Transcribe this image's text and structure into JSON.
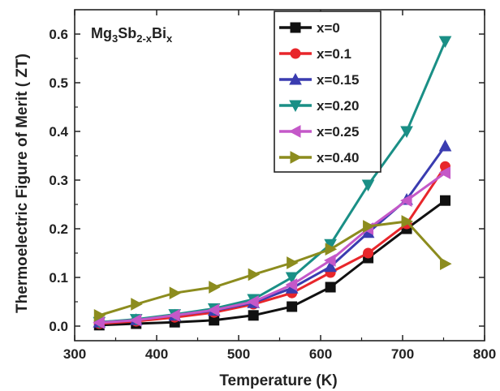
{
  "chart_data": {
    "type": "line",
    "annotation": {
      "main": "Mg",
      "sub1": "3",
      "mid": "Sb",
      "sub2": "2-x",
      "mid2": "Bi",
      "sub3": "x"
    },
    "xlabel": "Temperature (K)",
    "ylabel": "Thermoelectric Figure of Merit ( ZT)",
    "xlim": [
      300,
      800
    ],
    "ylim": [
      -0.03,
      0.65
    ],
    "xticks": [
      300,
      400,
      500,
      600,
      700,
      800
    ],
    "yticks": [
      0.0,
      0.1,
      0.2,
      0.3,
      0.4,
      0.5,
      0.6
    ],
    "ytick_labels": [
      "0.0",
      "0.1",
      "0.2",
      "0.3",
      "0.4",
      "0.5",
      "0.6"
    ],
    "legend_position": "top-center",
    "series": [
      {
        "name": "x=0",
        "color": "#111111",
        "marker": "square",
        "x": [
          330,
          375,
          422,
          470,
          518,
          565,
          612,
          658,
          705,
          752
        ],
        "y": [
          0.002,
          0.005,
          0.008,
          0.012,
          0.022,
          0.04,
          0.08,
          0.14,
          0.2,
          0.258
        ]
      },
      {
        "name": "x=0.1",
        "color": "#e8262b",
        "marker": "circle",
        "x": [
          330,
          375,
          422,
          470,
          518,
          565,
          612,
          658,
          705,
          752
        ],
        "y": [
          0.005,
          0.01,
          0.018,
          0.028,
          0.045,
          0.068,
          0.11,
          0.15,
          0.21,
          0.328
        ]
      },
      {
        "name": "x=0.15",
        "color": "#3a3cb0",
        "marker": "triangle-up",
        "x": [
          330,
          375,
          422,
          470,
          518,
          565,
          612,
          658,
          705,
          752
        ],
        "y": [
          0.008,
          0.013,
          0.022,
          0.032,
          0.048,
          0.078,
          0.122,
          0.192,
          0.26,
          0.37
        ]
      },
      {
        "name": "x=0.20",
        "color": "#1a8f86",
        "marker": "triangle-down",
        "x": [
          330,
          375,
          422,
          470,
          518,
          565,
          612,
          658,
          705,
          752
        ],
        "y": [
          0.008,
          0.014,
          0.024,
          0.036,
          0.055,
          0.1,
          0.168,
          0.29,
          0.4,
          0.585
        ]
      },
      {
        "name": "x=0.25",
        "color": "#c458c8",
        "marker": "triangle-left",
        "x": [
          330,
          375,
          422,
          470,
          518,
          565,
          612,
          658,
          705,
          752
        ],
        "y": [
          0.007,
          0.012,
          0.022,
          0.033,
          0.05,
          0.085,
          0.135,
          0.2,
          0.258,
          0.315
        ]
      },
      {
        "name": "x=0.40",
        "color": "#8c8c1e",
        "marker": "triangle-right",
        "x": [
          330,
          375,
          422,
          470,
          518,
          565,
          612,
          658,
          705,
          752
        ],
        "y": [
          0.022,
          0.045,
          0.068,
          0.08,
          0.106,
          0.13,
          0.158,
          0.205,
          0.215,
          0.128
        ]
      }
    ]
  }
}
